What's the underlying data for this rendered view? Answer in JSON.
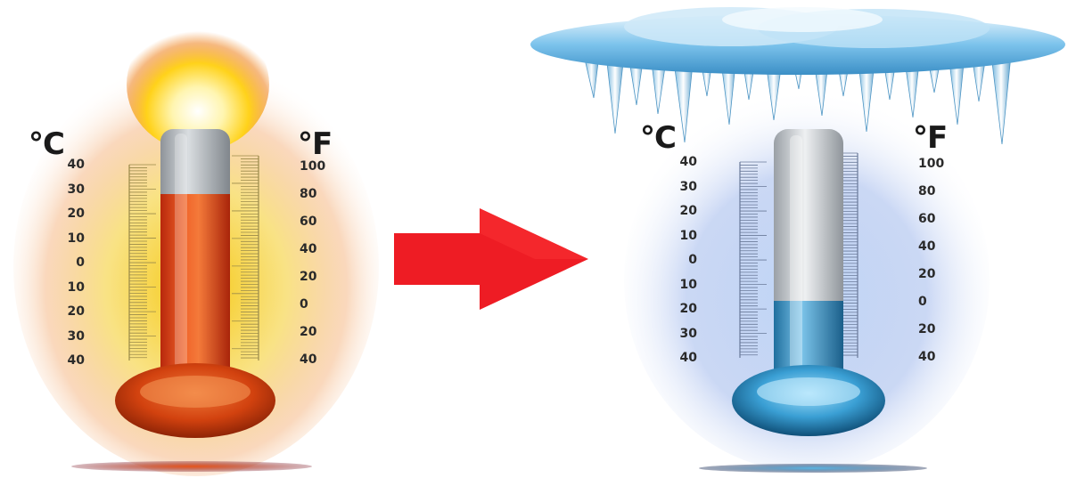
{
  "hot_thermometer": {
    "unit_celsius": "°C",
    "unit_fahrenheit": "°F",
    "celsius_ticks": [
      "40",
      "30",
      "20",
      "10",
      "0",
      "10",
      "20",
      "30",
      "40"
    ],
    "fahrenheit_ticks": [
      "100",
      "80",
      "60",
      "40",
      "20",
      "0",
      "20",
      "40"
    ],
    "liquid_color": "#e8541a",
    "level_fraction": 0.82
  },
  "cold_thermometer": {
    "unit_celsius": "°C",
    "unit_fahrenheit": "°F",
    "celsius_ticks": [
      "40",
      "30",
      "20",
      "10",
      "0",
      "10",
      "20",
      "30",
      "40"
    ],
    "fahrenheit_ticks": [
      "100",
      "80",
      "60",
      "40",
      "20",
      "0",
      "20",
      "40"
    ],
    "liquid_color": "#4aa6d6",
    "level_fraction": 0.28
  },
  "arrow": {
    "color": "#ee1c24",
    "direction": "right"
  },
  "icons": [
    "flame-icon",
    "ice-cloud-icon",
    "icicles-icon",
    "arrow-right-icon"
  ]
}
